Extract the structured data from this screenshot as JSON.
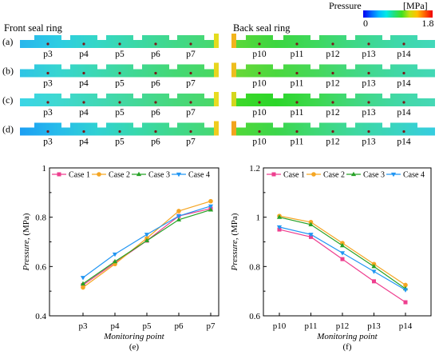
{
  "colorbar": {
    "title": "Pressure",
    "unit": "[MPa]",
    "min_label": "0",
    "max_label": "1.8",
    "colors": [
      "#0000f0",
      "#0060ff",
      "#00b8ff",
      "#00e8e8",
      "#20e080",
      "#40e020",
      "#c8e010",
      "#ffc000",
      "#ff6000",
      "#f00000"
    ]
  },
  "seal_rings": {
    "front": {
      "title": "Front seal ring",
      "points": [
        "p3",
        "p4",
        "p5",
        "p6",
        "p7"
      ]
    },
    "back": {
      "title": "Back seal ring",
      "points": [
        "p10",
        "p11",
        "p12",
        "p13",
        "p14"
      ]
    },
    "rows": [
      {
        "label": "(a)",
        "front_colors": [
          "#29b6ec",
          "#2dcde2",
          "#35d7c6",
          "#3bd8a6",
          "#41d888",
          "#47d870"
        ],
        "front_end_color": "#e4dc1e",
        "back_colors": [
          "#5ad83a",
          "#3cd640",
          "#3ed85e",
          "#3ed888",
          "#3ed8a8",
          "#42d8ba"
        ],
        "back_end_color": "#f2b41c"
      },
      {
        "label": "(b)",
        "front_colors": [
          "#2fc4e6",
          "#36d5d0",
          "#3cd8b2",
          "#40d892",
          "#44d874",
          "#48d862"
        ],
        "front_end_color": "#e8d61e",
        "back_colors": [
          "#68d838",
          "#4ad83e",
          "#46d85a",
          "#42d884",
          "#40d8a4",
          "#42d8b6"
        ],
        "back_end_color": "#eebe1e"
      },
      {
        "label": "(c)",
        "front_colors": [
          "#3bd5e6",
          "#3fd8d0",
          "#41d8b6",
          "#44d898",
          "#47d87c",
          "#4ad868"
        ],
        "front_end_color": "#e9dc22",
        "back_colors": [
          "#3ed82a",
          "#2cd62a",
          "#3ed84e",
          "#42d880",
          "#42d8a4",
          "#46d8b6"
        ],
        "back_end_color": "#d4d61e"
      },
      {
        "label": "(d)",
        "front_colors": [
          "#1c9ff3",
          "#27bcea",
          "#30d1d2",
          "#38d8ac",
          "#40d88a",
          "#46d874"
        ],
        "front_end_color": "#f0cc1e",
        "back_colors": [
          "#50d838",
          "#3cd64a",
          "#3ed876",
          "#3ed8a0",
          "#3ad4c0",
          "#36cde0"
        ],
        "back_end_color": "#f2a41c"
      }
    ]
  },
  "chart_data": [
    {
      "type": "line",
      "panel_label": "(e)",
      "categories": [
        "p3",
        "p4",
        "p5",
        "p6",
        "p7"
      ],
      "xlabel": "Monitoring point",
      "ylabel": {
        "main": "Pressure",
        "unit": ", (MPa)"
      },
      "ylim": [
        0.4,
        1.0
      ],
      "yticks": [
        "0.4",
        "0.6",
        "0.8",
        "1"
      ],
      "grid": false,
      "legend_position": "top",
      "series": [
        {
          "name": "Case 1",
          "color": "#ee3f8f",
          "marker": "square",
          "values": [
            0.525,
            0.615,
            0.705,
            0.805,
            0.835
          ]
        },
        {
          "name": "Case 2",
          "color": "#f5a623",
          "marker": "circle",
          "values": [
            0.515,
            0.61,
            0.715,
            0.825,
            0.865
          ]
        },
        {
          "name": "Case 3",
          "color": "#27a227",
          "marker": "triangle-up",
          "values": [
            0.53,
            0.62,
            0.705,
            0.79,
            0.83
          ]
        },
        {
          "name": "Case 4",
          "color": "#2196f3",
          "marker": "triangle-down",
          "values": [
            0.555,
            0.65,
            0.73,
            0.805,
            0.845
          ]
        }
      ]
    },
    {
      "type": "line",
      "panel_label": "(f)",
      "categories": [
        "p10",
        "p11",
        "p12",
        "p13",
        "p14"
      ],
      "xlabel": "Monitoring point",
      "ylabel": {
        "main": "Pressure",
        "unit": ", (MPa)"
      },
      "ylim": [
        0.6,
        1.2
      ],
      "yticks": [
        "0.6",
        "0.8",
        "1",
        "1.2"
      ],
      "grid": false,
      "legend_position": "top",
      "series": [
        {
          "name": "Case 1",
          "color": "#ee3f8f",
          "marker": "square",
          "values": [
            0.95,
            0.92,
            0.83,
            0.74,
            0.655
          ]
        },
        {
          "name": "Case 2",
          "color": "#f5a623",
          "marker": "circle",
          "values": [
            1.005,
            0.98,
            0.895,
            0.81,
            0.725
          ]
        },
        {
          "name": "Case 3",
          "color": "#27a227",
          "marker": "triangle-up",
          "values": [
            1.0,
            0.97,
            0.885,
            0.8,
            0.71
          ]
        },
        {
          "name": "Case 4",
          "color": "#2196f3",
          "marker": "triangle-down",
          "values": [
            0.96,
            0.93,
            0.855,
            0.78,
            0.705
          ]
        }
      ]
    }
  ]
}
